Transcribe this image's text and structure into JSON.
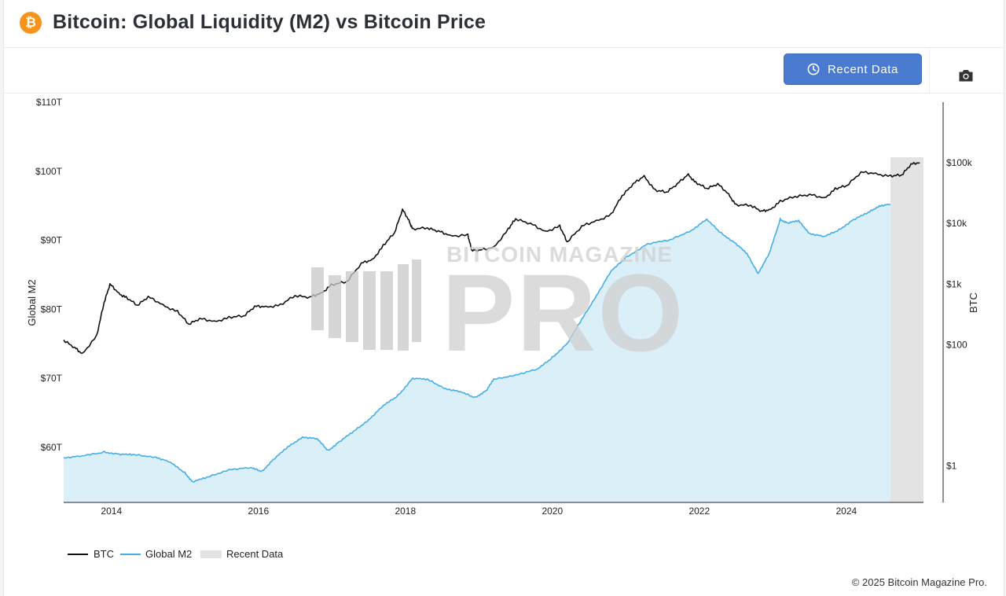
{
  "header": {
    "logo_glyph": "₿",
    "title": "Bitcoin: Global Liquidity (M2) vs Bitcoin Price"
  },
  "toolbar": {
    "recent_button_label": "Recent Data",
    "camera_icon": "camera-icon"
  },
  "watermark": {
    "top_text": "BITCOIN MAGAZINE",
    "main_text": "PRO"
  },
  "footer": {
    "copyright": "© 2025 Bitcoin Magazine Pro."
  },
  "colors": {
    "btc": "#111111",
    "m2_line": "#45aee6",
    "m2_fill": "#dbeff9",
    "recent": "#e3e3e3",
    "accent": "#4a7bd0",
    "logo": "#f7931a"
  },
  "chart_data": {
    "type": "line",
    "title": "Bitcoin: Global Liquidity (M2) vs Bitcoin Price",
    "xlabel": "",
    "y_left_label": "Global M2",
    "y_right_label": "BTC",
    "x_range": [
      2013.35,
      2025.05
    ],
    "x_ticks": [
      2014,
      2016,
      2018,
      2020,
      2022,
      2024
    ],
    "y_left": {
      "range_trillions": [
        52,
        110
      ],
      "ticks": [
        60,
        70,
        80,
        90,
        100,
        110
      ],
      "tick_labels": [
        "$60T",
        "$70T",
        "$80T",
        "$90T",
        "$100T",
        "$110T"
      ]
    },
    "y_right": {
      "scale": "log",
      "range_log10": [
        -0.6,
        6.0
      ],
      "ticks_log10": [
        0,
        2,
        3,
        4,
        5
      ],
      "tick_labels": [
        "$1",
        "$100",
        "$1k",
        "$10k",
        "$100k"
      ]
    },
    "recent_region": [
      2024.6,
      2025.05
    ],
    "series": [
      {
        "name": "BTC",
        "axis": "right",
        "unit": "USD",
        "points": [
          [
            2013.35,
            120
          ],
          [
            2013.5,
            90
          ],
          [
            2013.6,
            70
          ],
          [
            2013.8,
            140
          ],
          [
            2013.9,
            500
          ],
          [
            2013.98,
            1000
          ],
          [
            2014.1,
            700
          ],
          [
            2014.2,
            600
          ],
          [
            2014.35,
            450
          ],
          [
            2014.5,
            620
          ],
          [
            2014.7,
            450
          ],
          [
            2014.9,
            350
          ],
          [
            2015.05,
            220
          ],
          [
            2015.2,
            270
          ],
          [
            2015.4,
            240
          ],
          [
            2015.6,
            280
          ],
          [
            2015.8,
            300
          ],
          [
            2015.95,
            430
          ],
          [
            2016.1,
            420
          ],
          [
            2016.3,
            450
          ],
          [
            2016.5,
            650
          ],
          [
            2016.7,
            610
          ],
          [
            2016.85,
            700
          ],
          [
            2016.99,
            960
          ],
          [
            2017.2,
            1100
          ],
          [
            2017.4,
            2200
          ],
          [
            2017.55,
            2500
          ],
          [
            2017.7,
            4300
          ],
          [
            2017.85,
            7000
          ],
          [
            2017.96,
            17000
          ],
          [
            2018.05,
            11000
          ],
          [
            2018.1,
            8000
          ],
          [
            2018.3,
            8500
          ],
          [
            2018.45,
            7500
          ],
          [
            2018.6,
            6300
          ],
          [
            2018.85,
            6400
          ],
          [
            2018.9,
            3700
          ],
          [
            2019.0,
            3600
          ],
          [
            2019.2,
            4000
          ],
          [
            2019.4,
            8000
          ],
          [
            2019.5,
            12000
          ],
          [
            2019.7,
            10000
          ],
          [
            2019.9,
            7300
          ],
          [
            2020.1,
            9000
          ],
          [
            2020.2,
            5000
          ],
          [
            2020.4,
            9000
          ],
          [
            2020.6,
            11000
          ],
          [
            2020.8,
            14000
          ],
          [
            2020.95,
            29000
          ],
          [
            2021.1,
            45000
          ],
          [
            2021.25,
            60000
          ],
          [
            2021.4,
            35000
          ],
          [
            2021.55,
            33000
          ],
          [
            2021.7,
            45000
          ],
          [
            2021.85,
            64000
          ],
          [
            2021.95,
            47000
          ],
          [
            2022.1,
            38000
          ],
          [
            2022.25,
            45000
          ],
          [
            2022.4,
            30000
          ],
          [
            2022.5,
            20000
          ],
          [
            2022.7,
            20000
          ],
          [
            2022.85,
            16000
          ],
          [
            2022.95,
            16500
          ],
          [
            2023.1,
            23000
          ],
          [
            2023.3,
            28000
          ],
          [
            2023.5,
            30000
          ],
          [
            2023.7,
            26000
          ],
          [
            2023.85,
            37000
          ],
          [
            2024.0,
            42000
          ],
          [
            2024.2,
            70000
          ],
          [
            2024.4,
            66000
          ],
          [
            2024.6,
            60000
          ],
          [
            2024.75,
            63000
          ],
          [
            2024.88,
            95000
          ],
          [
            2025.0,
            100000
          ]
        ]
      },
      {
        "name": "Global M2",
        "axis": "left",
        "unit": "trillion USD",
        "points": [
          [
            2013.35,
            58.5
          ],
          [
            2013.6,
            58.7
          ],
          [
            2013.9,
            59.3
          ],
          [
            2014.1,
            59.0
          ],
          [
            2014.3,
            58.9
          ],
          [
            2014.6,
            58.6
          ],
          [
            2014.8,
            57.8
          ],
          [
            2015.0,
            56.3
          ],
          [
            2015.1,
            55.0
          ],
          [
            2015.3,
            55.6
          ],
          [
            2015.6,
            56.8
          ],
          [
            2015.9,
            57.0
          ],
          [
            2016.05,
            56.5
          ],
          [
            2016.2,
            58.2
          ],
          [
            2016.4,
            60.0
          ],
          [
            2016.6,
            61.5
          ],
          [
            2016.8,
            61.2
          ],
          [
            2016.95,
            59.5
          ],
          [
            2017.1,
            60.8
          ],
          [
            2017.3,
            62.3
          ],
          [
            2017.5,
            64.0
          ],
          [
            2017.7,
            66.0
          ],
          [
            2017.9,
            67.5
          ],
          [
            2018.1,
            70.0
          ],
          [
            2018.3,
            69.8
          ],
          [
            2018.55,
            68.5
          ],
          [
            2018.75,
            68.0
          ],
          [
            2018.95,
            67.2
          ],
          [
            2019.1,
            68.2
          ],
          [
            2019.2,
            69.8
          ],
          [
            2019.5,
            70.5
          ],
          [
            2019.8,
            71.3
          ],
          [
            2020.0,
            73.0
          ],
          [
            2020.2,
            75.0
          ],
          [
            2020.4,
            78.5
          ],
          [
            2020.6,
            82.0
          ],
          [
            2020.8,
            85.5
          ],
          [
            2021.0,
            87.5
          ],
          [
            2021.3,
            89.5
          ],
          [
            2021.6,
            90.0
          ],
          [
            2021.9,
            91.5
          ],
          [
            2022.1,
            93.0
          ],
          [
            2022.3,
            91.0
          ],
          [
            2022.5,
            89.5
          ],
          [
            2022.65,
            88.0
          ],
          [
            2022.8,
            85.2
          ],
          [
            2022.95,
            88.0
          ],
          [
            2023.1,
            93.0
          ],
          [
            2023.2,
            92.5
          ],
          [
            2023.35,
            92.8
          ],
          [
            2023.5,
            91.0
          ],
          [
            2023.7,
            90.5
          ],
          [
            2023.9,
            91.5
          ],
          [
            2024.1,
            93.0
          ],
          [
            2024.3,
            94.0
          ],
          [
            2024.45,
            95.0
          ],
          [
            2024.6,
            95.2
          ]
        ]
      }
    ],
    "legend": [
      "BTC",
      "Global M2",
      "Recent Data"
    ],
    "legend_position": "bottom-left"
  }
}
